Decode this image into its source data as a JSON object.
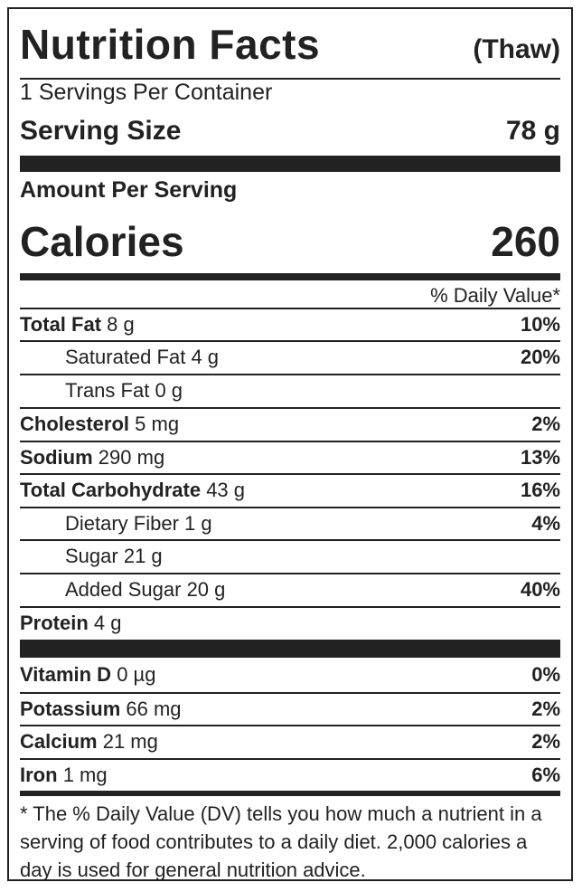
{
  "header": {
    "title": "Nutrition Facts",
    "variant": "(Thaw)"
  },
  "servings_per_container": "1 Servings Per Container",
  "serving_size": {
    "label": "Serving Size",
    "value": "78 g"
  },
  "amount_per_serving": "Amount Per Serving",
  "calories": {
    "label": "Calories",
    "value": "260"
  },
  "daily_value_header": "% Daily Value*",
  "nutrients": [
    {
      "name": "Total Fat",
      "amount": "8 g",
      "dv": "10%"
    },
    {
      "name": "Saturated Fat",
      "amount": "4 g",
      "dv": "20%"
    },
    {
      "name": "Trans Fat",
      "amount": "0 g",
      "dv": ""
    },
    {
      "name": "Cholesterol",
      "amount": "5 mg",
      "dv": "2%"
    },
    {
      "name": "Sodium",
      "amount": "290 mg",
      "dv": "13%"
    },
    {
      "name": "Total Carbohydrate",
      "amount": "43 g",
      "dv": "16%"
    },
    {
      "name": "Dietary Fiber",
      "amount": "1 g",
      "dv": "4%"
    },
    {
      "name": "Sugar",
      "amount": "21 g",
      "dv": ""
    },
    {
      "name": "Added Sugar",
      "amount": "20 g",
      "dv": "40%"
    },
    {
      "name": "Protein",
      "amount": "4 g",
      "dv": ""
    }
  ],
  "vitamins": [
    {
      "name": "Vitamin D",
      "amount": "0 µg",
      "dv": "0%"
    },
    {
      "name": "Potassium",
      "amount": "66 mg",
      "dv": "2%"
    },
    {
      "name": "Calcium",
      "amount": "21 mg",
      "dv": "2%"
    },
    {
      "name": "Iron",
      "amount": "1 mg",
      "dv": "6%"
    }
  ],
  "footnote": "* The % Daily Value (DV) tells you how much a nutrient in a serving of food contributes to a daily diet. 2,000 calories a day is used for general nutrition advice."
}
